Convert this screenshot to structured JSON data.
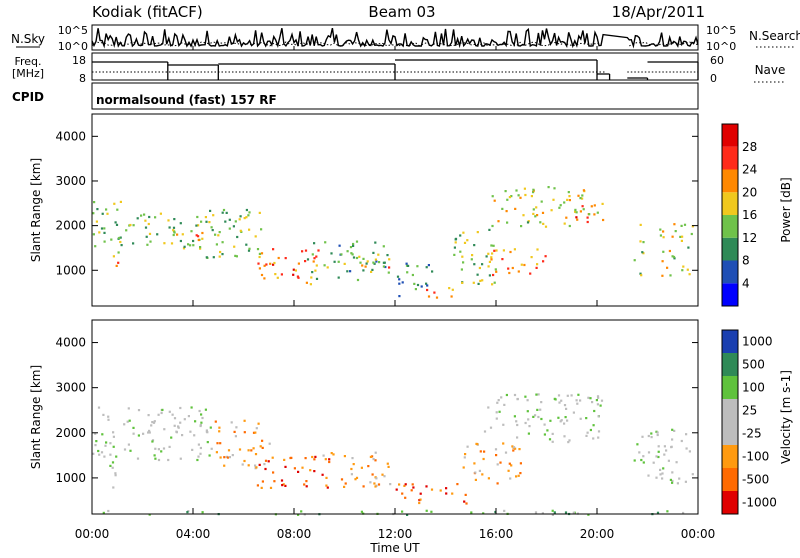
{
  "header": {
    "station": "Kodiak (fitACF)",
    "beam": "Beam 03",
    "date": "18/Apr/2011"
  },
  "strip_panels": {
    "nsky": {
      "label": "N.Sky",
      "right_label": "N.Search",
      "left_ticks": [
        "10^5",
        "10^0"
      ],
      "right_ticks": [
        "10^5",
        "10^0"
      ]
    },
    "freq": {
      "label_line1": "Freq.",
      "label_line2": "[MHz]",
      "right_label": "Nave",
      "left_ticks": [
        "18",
        "8"
      ],
      "right_ticks": [
        "60",
        "0"
      ]
    },
    "cpid": {
      "label": "CPID",
      "mode_text": "normalsound (fast) 157 RF"
    }
  },
  "chart_data": [
    {
      "type": "heatmap",
      "title": "",
      "xlabel": "",
      "ylabel": "Slant Range [km]",
      "x_range_hours": [
        0,
        24
      ],
      "ylim": [
        200,
        4500
      ],
      "yticks": [
        1000,
        2000,
        3000,
        4000
      ],
      "colorbar": {
        "label": "Power [dB]",
        "ticks": [
          "4",
          "8",
          "12",
          "16",
          "20",
          "24",
          "28"
        ],
        "range": [
          0,
          30
        ],
        "colors": [
          "#0000ff",
          "#1f4fb5",
          "#2f8a57",
          "#6fc24a",
          "#f0c81e",
          "#ff8800",
          "#ff2a1a",
          "#e00000"
        ]
      },
      "regions": [
        {
          "t0": 0.0,
          "t1": 1.2,
          "r0": 1400,
          "r1": 2600,
          "level": 14
        },
        {
          "t0": 0.7,
          "t1": 1.0,
          "r0": 900,
          "r1": 1400,
          "level": 22
        },
        {
          "t0": 1.0,
          "t1": 4.5,
          "r0": 1500,
          "r1": 2300,
          "level": 12
        },
        {
          "t0": 3.0,
          "t1": 4.5,
          "r0": 1600,
          "r1": 1950,
          "level": 20
        },
        {
          "t0": 4.5,
          "t1": 6.8,
          "r0": 1300,
          "r1": 2500,
          "level": 14
        },
        {
          "t0": 6.5,
          "t1": 9.0,
          "r0": 700,
          "r1": 1500,
          "level": 22
        },
        {
          "t0": 8.5,
          "t1": 11.8,
          "r0": 800,
          "r1": 1700,
          "level": 12
        },
        {
          "t0": 10.5,
          "t1": 11.8,
          "r0": 1000,
          "r1": 1300,
          "level": 18
        },
        {
          "t0": 12.0,
          "t1": 13.5,
          "r0": 400,
          "r1": 1200,
          "level": 10
        },
        {
          "t0": 13.2,
          "t1": 14.5,
          "r0": 400,
          "r1": 700,
          "level": 20
        },
        {
          "t0": 14.3,
          "t1": 16.0,
          "r0": 700,
          "r1": 2000,
          "level": 14
        },
        {
          "t0": 15.5,
          "t1": 18.0,
          "r0": 900,
          "r1": 1500,
          "level": 20
        },
        {
          "t0": 15.8,
          "t1": 20.2,
          "r0": 2000,
          "r1": 2900,
          "level": 16
        },
        {
          "t0": 19.0,
          "t1": 20.0,
          "r0": 2100,
          "r1": 2500,
          "level": 24
        },
        {
          "t0": 21.4,
          "t1": 21.8,
          "r0": 900,
          "r1": 2100,
          "level": 14
        },
        {
          "t0": 22.4,
          "t1": 23.8,
          "r0": 900,
          "r1": 2100,
          "level": 16
        }
      ]
    },
    {
      "type": "heatmap",
      "title": "",
      "xlabel": "Time UT",
      "ylabel": "Slant Range [km]",
      "x_range_hours": [
        0,
        24
      ],
      "ylim": [
        200,
        4500
      ],
      "yticks": [
        1000,
        2000,
        3000,
        4000
      ],
      "xticks": [
        "00:00",
        "04:00",
        "08:00",
        "12:00",
        "16:00",
        "20:00",
        "00:00"
      ],
      "colorbar": {
        "label": "Velocity [m s-1]",
        "ticks": [
          "1000",
          "500",
          "100",
          "25",
          "-25",
          "-100",
          "-500",
          "-1000"
        ],
        "colors": [
          "#1a3fb0",
          "#2f8a57",
          "#5fc23c",
          "#bdbdbd",
          "#bdbdbd",
          "#ff9a10",
          "#ff6a00",
          "#e00000"
        ]
      },
      "regions": [
        {
          "t0": 0.0,
          "t1": 4.8,
          "r0": 1400,
          "r1": 2600,
          "level": 3
        },
        {
          "t0": 0.5,
          "t1": 1.0,
          "r0": 800,
          "r1": 1600,
          "level": 3
        },
        {
          "t0": 4.8,
          "t1": 7.0,
          "r0": 1200,
          "r1": 2300,
          "level": 5
        },
        {
          "t0": 6.5,
          "t1": 9.5,
          "r0": 800,
          "r1": 1500,
          "level": 6
        },
        {
          "t0": 9.0,
          "t1": 11.8,
          "r0": 800,
          "r1": 1600,
          "level": 5
        },
        {
          "t0": 12.0,
          "t1": 14.8,
          "r0": 400,
          "r1": 900,
          "level": 6
        },
        {
          "t0": 14.5,
          "t1": 17.0,
          "r0": 900,
          "r1": 1800,
          "level": 5
        },
        {
          "t0": 15.5,
          "t1": 20.2,
          "r0": 1800,
          "r1": 2900,
          "level": 3
        },
        {
          "t0": 21.4,
          "t1": 23.8,
          "r0": 900,
          "r1": 2100,
          "level": 3
        },
        {
          "t0": 0.0,
          "t1": 24.0,
          "r0": 200,
          "r1": 300,
          "level": 2
        }
      ]
    }
  ]
}
